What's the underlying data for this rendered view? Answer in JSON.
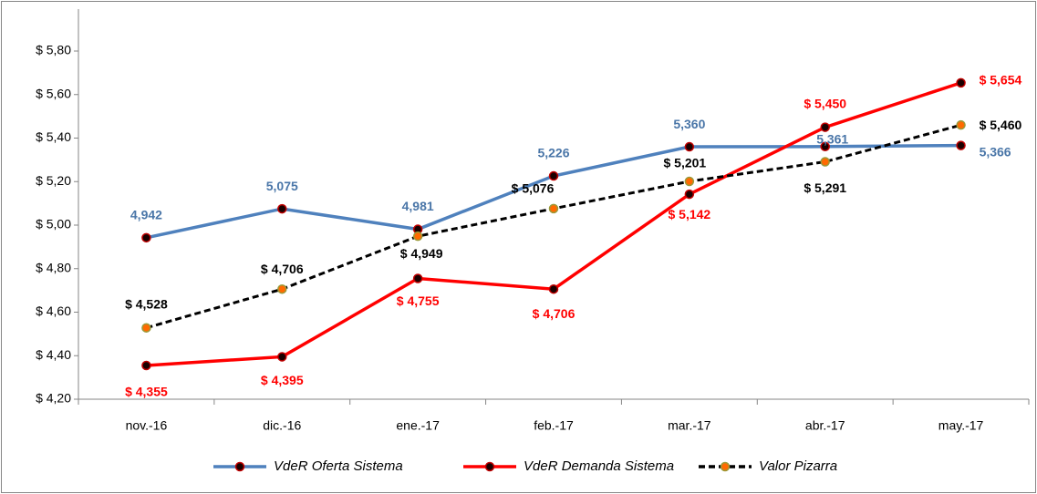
{
  "chart_data": {
    "type": "line",
    "categories": [
      "nov.-16",
      "dic.-16",
      "ene.-17",
      "feb.-17",
      "mar.-17",
      "abr.-17",
      "may.-17"
    ],
    "series": [
      {
        "name": "VdeR Oferta Sistema",
        "color": "#4f81bd",
        "label_color": "#4a76a8",
        "dashed": false,
        "values": [
          4.942,
          5.075,
          4.981,
          5.226,
          5.36,
          5.361,
          5.366
        ],
        "value_labels": [
          "4,942",
          "5,075",
          "4,981",
          "5,226",
          "5,360",
          "5,361",
          "5,366"
        ]
      },
      {
        "name": "VdeR Demanda Sistema",
        "color": "#ff0000",
        "label_color": "#ff0000",
        "dashed": false,
        "values": [
          4.355,
          4.395,
          4.755,
          4.706,
          5.142,
          5.45,
          5.654
        ],
        "value_labels": [
          "$ 4,355",
          "$ 4,395",
          "$ 4,755",
          "$ 4,706",
          "$ 5,142",
          "$ 5,450",
          "$ 5,654"
        ]
      },
      {
        "name": "Valor Pizarra",
        "color": "#000000",
        "label_color": "#000000",
        "dashed": true,
        "values": [
          4.528,
          4.706,
          4.949,
          5.076,
          5.201,
          5.291,
          5.46
        ],
        "value_labels": [
          "$ 4,528",
          "$ 4,706",
          "$ 4,949",
          "$ 5,076",
          "$ 5,201",
          "$ 5,291",
          "$ 5,460"
        ]
      }
    ],
    "ylim": [
      4.2,
      5.8
    ],
    "yticks": [
      {
        "value": 4.2,
        "label": "$ 4,20"
      },
      {
        "value": 4.4,
        "label": "$ 4,40"
      },
      {
        "value": 4.6,
        "label": "$ 4,60"
      },
      {
        "value": 4.8,
        "label": "$ 4,80"
      },
      {
        "value": 5.0,
        "label": "$ 5,00"
      },
      {
        "value": 5.2,
        "label": "$ 5,20"
      },
      {
        "value": 5.4,
        "label": "$ 5,40"
      },
      {
        "value": 5.6,
        "label": "$ 5,60"
      },
      {
        "value": 5.8,
        "label": "$ 5,80"
      }
    ],
    "grid": false,
    "legend": "bottom"
  }
}
